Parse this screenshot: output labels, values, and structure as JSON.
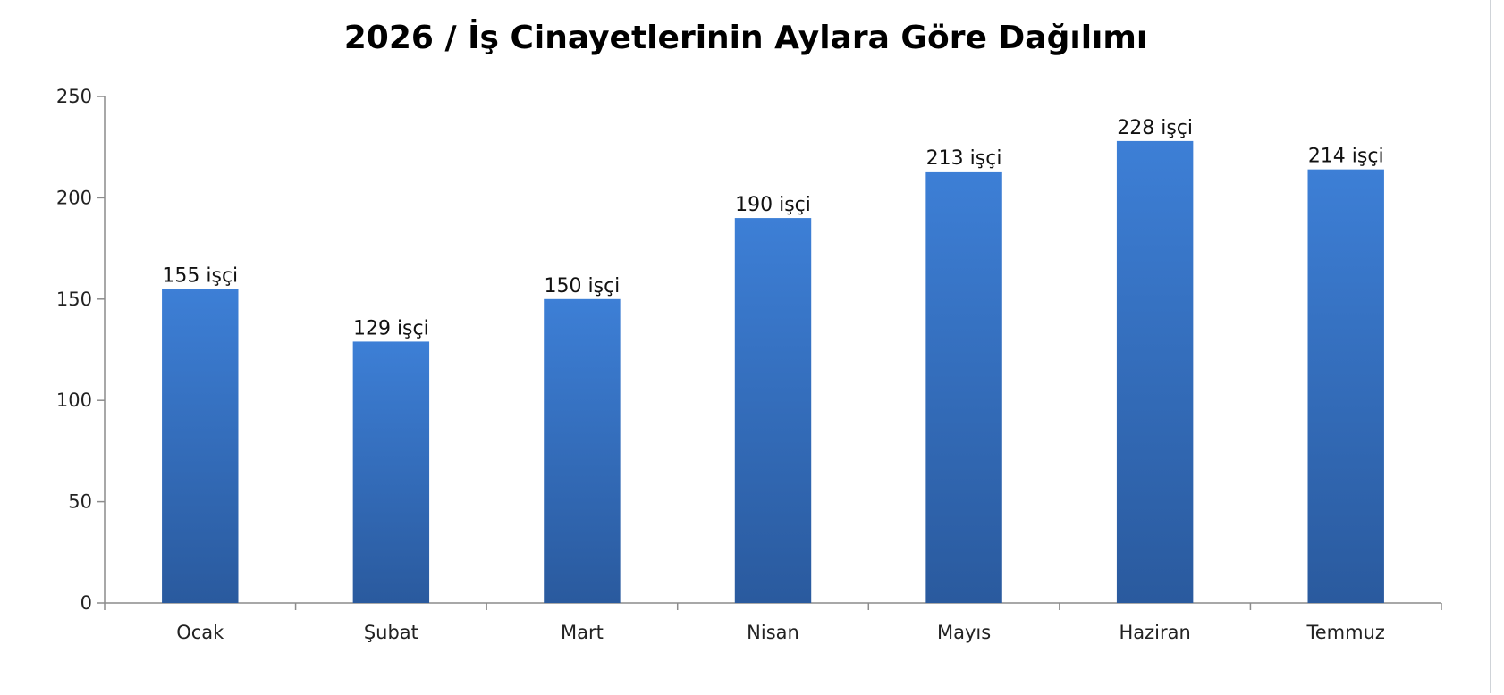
{
  "chart_data": {
    "type": "bar",
    "title": "2026 / İş Cinayetlerinin Aylara Göre Dağılımı",
    "xlabel": "",
    "ylabel": "",
    "categories": [
      "Ocak",
      "Şubat",
      "Mart",
      "Nisan",
      "Mayıs",
      "Haziran",
      "Temmuz"
    ],
    "values": [
      155,
      129,
      150,
      190,
      213,
      228,
      214
    ],
    "data_labels": [
      "155 işçi",
      "129 işçi",
      "150 işçi",
      "190 işçi",
      "213 işçi",
      "228 işçi",
      "214 işçi"
    ],
    "ylim": [
      0,
      250
    ],
    "yticks": [
      0,
      50,
      100,
      150,
      200,
      250
    ],
    "grid": false,
    "legend": "none",
    "bar_color_top": "#3d7fd6",
    "bar_color_bottom": "#2a5a9e"
  }
}
